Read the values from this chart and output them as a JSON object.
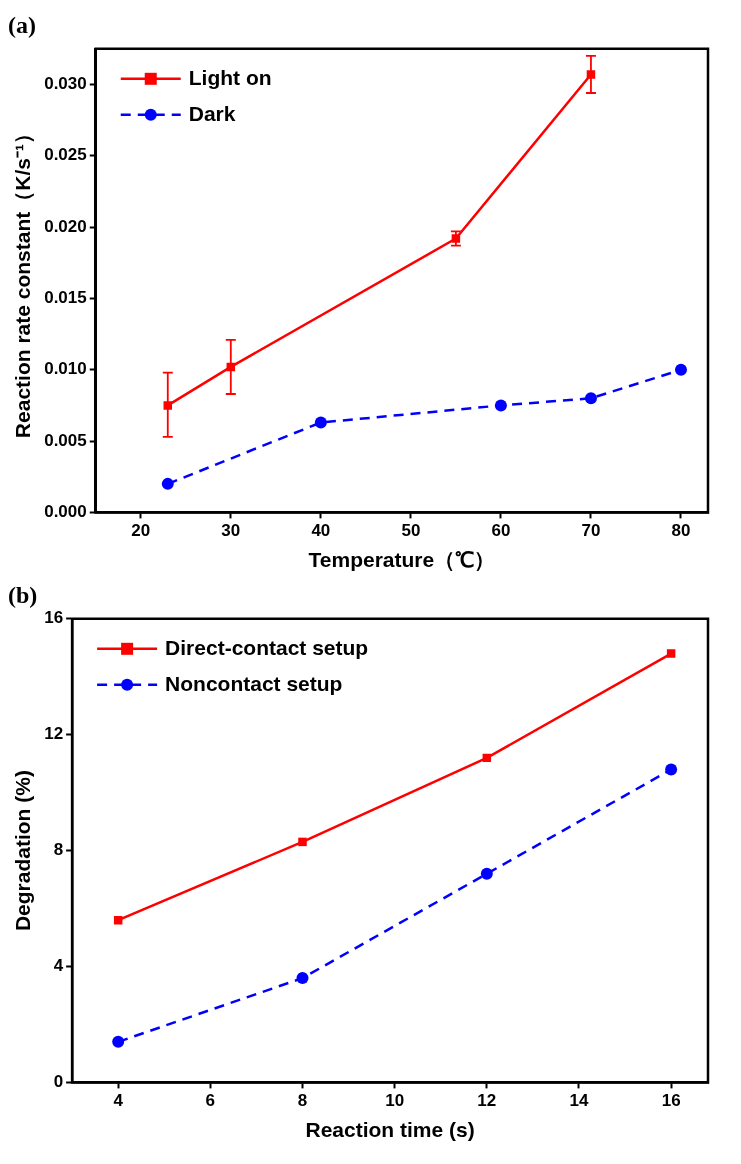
{
  "chart_data": [
    {
      "type": "line",
      "title": "(a)",
      "xlabel": "Temperature（℃）",
      "ylabel": "Reaction rate constant（K/s⁻¹）",
      "xlim": [
        15,
        83
      ],
      "xticks": [
        20,
        30,
        40,
        50,
        60,
        70,
        80
      ],
      "ylim": [
        0,
        0.0325
      ],
      "yticks": [
        {
          "value": 0,
          "label": "0.000"
        },
        {
          "value": 0.005,
          "label": "0.005"
        },
        {
          "value": 0.01,
          "label": "0.010"
        },
        {
          "value": 0.015,
          "label": "0.015"
        },
        {
          "value": 0.02,
          "label": "0.020"
        },
        {
          "value": 0.025,
          "label": "0.025"
        },
        {
          "value": 0.03,
          "label": "0.030"
        }
      ],
      "legend": "top left",
      "series": [
        {
          "name": "Light on",
          "color": "#ff0000",
          "marker": "square",
          "line_style": "solid",
          "x": [
            23,
            30,
            55,
            70
          ],
          "values": [
            0.0075,
            0.0102,
            0.0192,
            0.0307
          ],
          "errors": [
            [
              0.0053,
              0.0098
            ],
            [
              0.0083,
              0.0121
            ],
            [
              0.0187,
              0.0197
            ],
            [
              0.0294,
              0.032
            ]
          ]
        },
        {
          "name": "Dark",
          "color": "#0000ff",
          "marker": "circle",
          "line_style": "dashed",
          "x": [
            23,
            40,
            60,
            70,
            80
          ],
          "values": [
            0.002,
            0.0063,
            0.0075,
            0.008,
            0.01
          ]
        }
      ]
    },
    {
      "type": "line",
      "title": "(b)",
      "xlabel": "Reaction time (s)",
      "ylabel": "Degradation (%)",
      "xlim": [
        3,
        16.8
      ],
      "xticks": [
        4,
        6,
        8,
        10,
        12,
        14,
        16
      ],
      "ylim": [
        0,
        16
      ],
      "yticks": [
        0,
        4,
        8,
        12,
        16
      ],
      "legend": "top left",
      "series": [
        {
          "name": "Direct-contact setup",
          "color": "#ff0000",
          "marker": "square",
          "line_style": "solid",
          "x": [
            4,
            8,
            12,
            16
          ],
          "values": [
            5.6,
            8.3,
            11.2,
            14.8
          ]
        },
        {
          "name": "Noncontact setup",
          "color": "#0000ff",
          "marker": "circle",
          "line_style": "dashed",
          "x": [
            4,
            8,
            12,
            16
          ],
          "values": [
            1.4,
            3.6,
            7.2,
            10.8
          ]
        }
      ]
    }
  ]
}
